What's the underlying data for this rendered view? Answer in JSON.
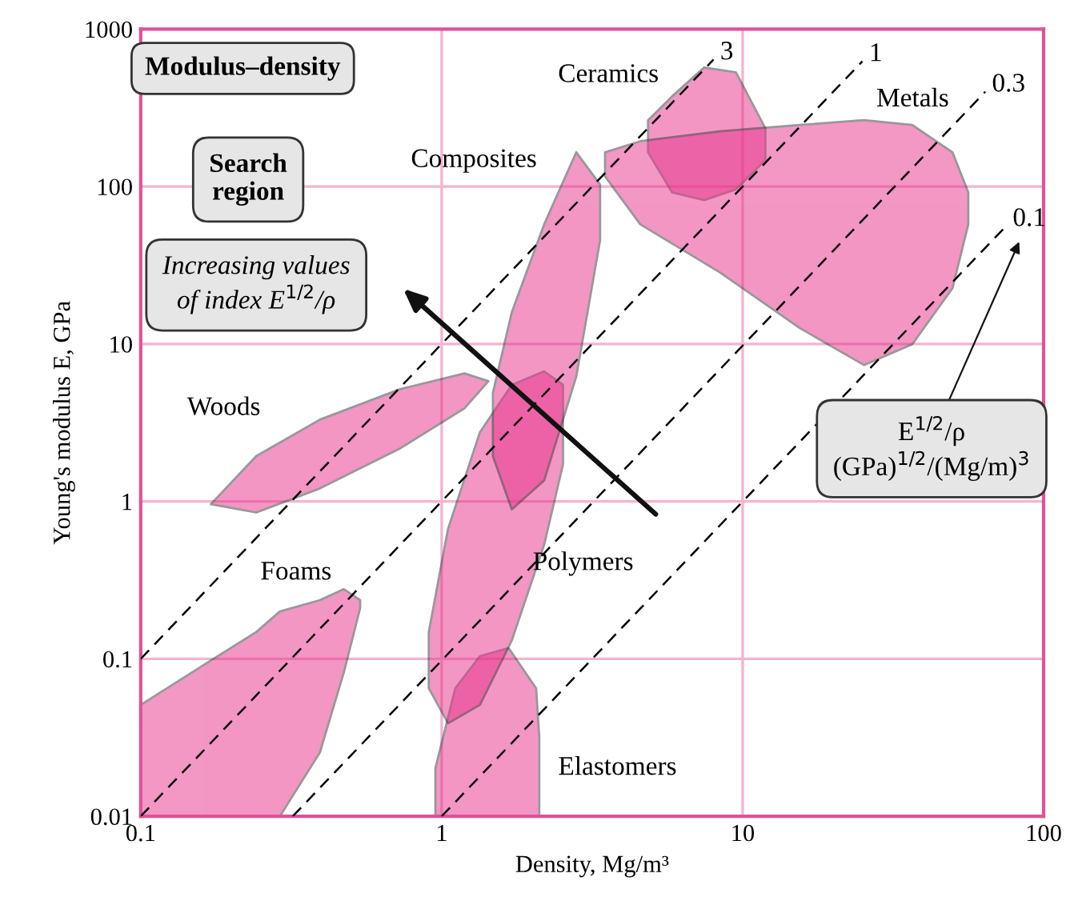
{
  "chart_data": {
    "type": "area",
    "xlabel": "Density, Mg/m³",
    "ylabel": "Young's modulus E, GPa",
    "log": "xy",
    "xlim": [
      0.1,
      100
    ],
    "xticks": [
      0.1,
      1,
      10,
      100
    ],
    "ylim": [
      0.01,
      1000
    ],
    "yticks": [
      0.01,
      0.1,
      1,
      10,
      100,
      1000
    ],
    "grid": true,
    "series": [
      {
        "name": "Foams",
        "color": "#e8308a",
        "x": [
          0.1,
          0.148,
          0.242,
          0.29,
          0.394,
          0.473,
          0.536,
          0.536,
          0.473,
          0.394,
          0.29,
          0.242,
          0.148,
          0.1
        ],
        "values": [
          0.051,
          0.082,
          0.148,
          0.2,
          0.236,
          0.277,
          0.236,
          0.21,
          0.082,
          0.0255,
          0.01,
          0.01,
          0.01,
          0.01
        ]
      },
      {
        "name": "Woods",
        "color": "#e8308a",
        "x": [
          0.171,
          0.242,
          0.394,
          0.727,
          1.19,
          1.43,
          1.19,
          0.727,
          0.394,
          0.242
        ],
        "values": [
          0.96,
          1.94,
          3.31,
          5.16,
          6.5,
          5.8,
          3.9,
          2.17,
          1.21,
          0.85
        ]
      },
      {
        "name": "Elastomers",
        "color": "#e8308a",
        "x": [
          0.953,
          1.11,
          1.34,
          1.67,
          2.06,
          2.11,
          2.11,
          0.953
        ],
        "values": [
          0.0202,
          0.065,
          0.104,
          0.117,
          0.065,
          0.032,
          0.01,
          0.01
        ]
      },
      {
        "name": "Polymers",
        "color": "#e8308a",
        "x": [
          0.906,
          1.05,
          1.34,
          1.71,
          2.19,
          2.53,
          2.53,
          2.19,
          1.71,
          1.34,
          1.05,
          0.906
        ],
        "values": [
          0.148,
          0.67,
          2.75,
          5.5,
          6.7,
          5.5,
          1.72,
          0.53,
          0.131,
          0.051,
          0.039,
          0.065
        ]
      },
      {
        "name": "Composites",
        "color": "#e8308a",
        "x": [
          1.48,
          1.71,
          2.19,
          2.8,
          3.36,
          3.36,
          2.8,
          2.19,
          1.71,
          1.48
        ],
        "values": [
          4.9,
          15.9,
          57.5,
          165,
          103,
          45.6,
          6.2,
          1.36,
          0.89,
          1.94
        ]
      },
      {
        "name": "Ceramics",
        "color": "#e8308a",
        "x": [
          4.85,
          5.83,
          7.45,
          9.5,
          11.9,
          11.9,
          9.5,
          7.45,
          5.83,
          4.85
        ],
        "values": [
          264,
          374,
          570,
          532,
          234,
          147,
          96,
          81.9,
          91.8,
          165
        ]
      },
      {
        "name": "Metals",
        "color": "#e8308a",
        "x": [
          3.49,
          4.57,
          8.4,
          15.5,
          25.3,
          36.6,
          49.8,
          56.2,
          56.2,
          49.8,
          36.6,
          25.3,
          15.5,
          8.4,
          4.57,
          3.49
        ],
        "values": [
          165,
          194,
          224,
          246,
          264,
          246,
          165,
          91.8,
          57.5,
          22.6,
          9.95,
          7.35,
          12.6,
          28.5,
          57.5,
          116
        ]
      },
      {
        "name": "3",
        "type": "line",
        "line_style": "dashed",
        "color": "#000000",
        "x": [
          0.1,
          8
        ],
        "values": [
          0.1,
          640
        ]
      },
      {
        "name": "1",
        "type": "line",
        "line_style": "dashed",
        "color": "#000000",
        "x": [
          0.1,
          25
        ],
        "values": [
          0.01,
          625
        ]
      },
      {
        "name": "0.3",
        "type": "line",
        "line_style": "dashed",
        "color": "#000000",
        "x": [
          0.32,
          64
        ],
        "values": [
          0.01,
          400
        ]
      },
      {
        "name": "0.1",
        "type": "line",
        "line_style": "dashed",
        "color": "#000000",
        "x": [
          1,
          75
        ],
        "values": [
          0.01,
          56
        ]
      }
    ],
    "annotations": [
      "Modulus–density",
      "Search\nregion",
      "Increasing values\nof index E$^{1/2}$/ρ",
      "E$^{1/2}$/ρ\n(GPa)$^{1/2}$/(Mg/m)$^{3}$"
    ]
  }
}
